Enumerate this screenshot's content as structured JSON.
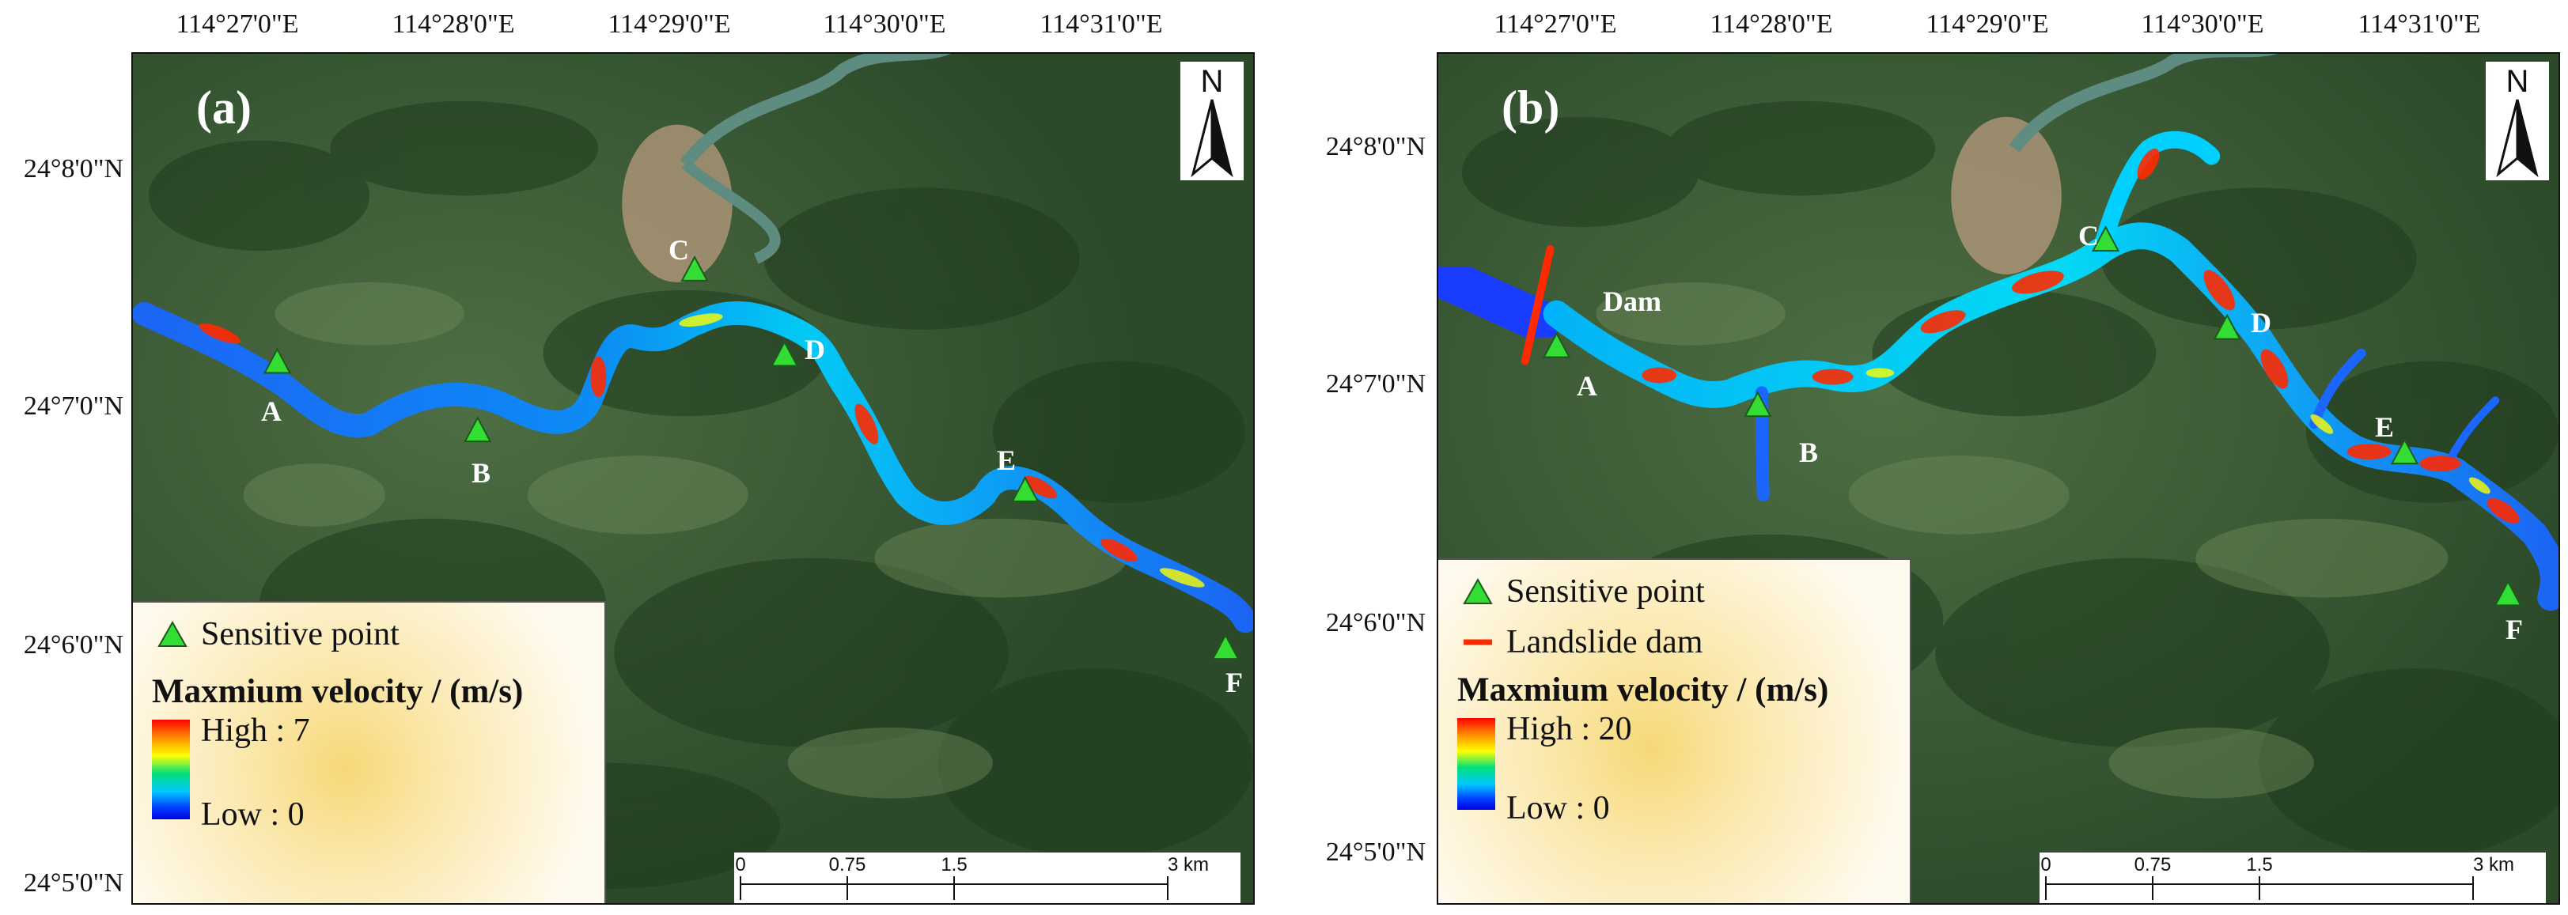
{
  "panels": [
    {
      "tag": "(a)",
      "lon_labels": [
        "114°27'0\"E",
        "114°28'0\"E",
        "114°29'0\"E",
        "114°30'0\"E",
        "114°31'0\"E"
      ],
      "lat_labels": [
        "24°8'0\"N",
        "24°7'0\"N",
        "24°6'0\"N",
        "24°5'0\"N"
      ],
      "north_label": "N",
      "points": [
        "A",
        "B",
        "C",
        "D",
        "E",
        "F"
      ],
      "legend": {
        "sensitive_point": "Sensitive point",
        "title": "Maxmium velocity / (m/s)",
        "high": "High : 7",
        "low": "Low : 0"
      },
      "scale": [
        "0",
        "0.75",
        "1.5",
        "3 km"
      ]
    },
    {
      "tag": "(b)",
      "lon_labels": [
        "114°27'0\"E",
        "114°28'0\"E",
        "114°29'0\"E",
        "114°30'0\"E",
        "114°31'0\"E"
      ],
      "lat_labels": [
        "24°8'0\"N",
        "24°7'0\"N",
        "24°6'0\"N",
        "24°5'0\"N"
      ],
      "north_label": "N",
      "points": [
        "A",
        "B",
        "C",
        "D",
        "E",
        "F"
      ],
      "dam_label": "Dam",
      "legend": {
        "sensitive_point": "Sensitive point",
        "landslide_dam": "Landslide dam",
        "title": "Maxmium velocity / (m/s)",
        "high": "High : 20",
        "low": "Low : 0"
      },
      "scale": [
        "0",
        "0.75",
        "1.5",
        "3 km"
      ]
    }
  ],
  "colors": {
    "sensitive_point": "#33dd33",
    "landslide_dam": "#ff2a00",
    "velocity_low": "#0000e0",
    "velocity_high": "#ff0000"
  }
}
